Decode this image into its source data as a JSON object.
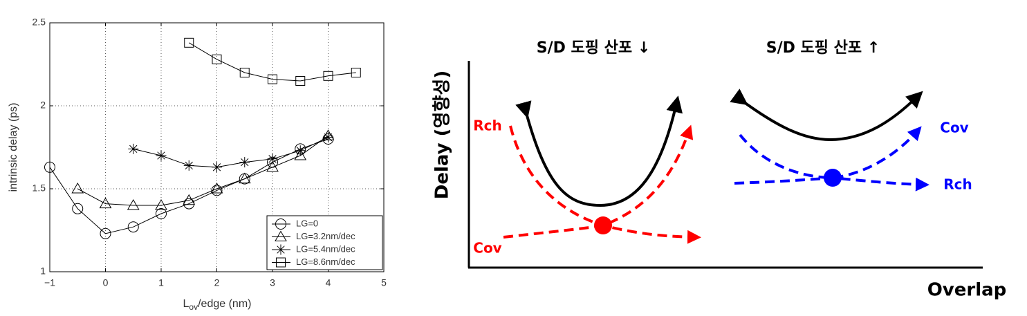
{
  "chart_data": {
    "type": "line",
    "xlabel": [
      "L",
      "ov",
      "/edge (nm)"
    ],
    "ylabel": "intrinsic delay (ps)",
    "xlim": [
      -1,
      5
    ],
    "ylim": [
      1,
      2.5
    ],
    "xticks": [
      {
        "value": -1,
        "label": "−1"
      },
      0,
      1,
      2,
      3,
      4,
      5
    ],
    "yticks": [
      1,
      1.5,
      2,
      2.5
    ],
    "grid": true,
    "legend": "lower right",
    "series": [
      {
        "name": "LG=0",
        "color": "#000000",
        "marker": "o",
        "x": [
          -1,
          -0.5,
          0,
          0.5,
          1,
          1.5,
          2,
          2.5,
          3,
          3.5,
          4
        ],
        "values": [
          1.63,
          1.38,
          1.23,
          1.27,
          1.35,
          1.41,
          1.49,
          1.56,
          1.66,
          1.74,
          1.8
        ]
      },
      {
        "name": "LG=3.2nm/dec",
        "color": "#000000",
        "marker": "^",
        "x": [
          -0.5,
          0,
          0.5,
          1,
          1.5,
          2,
          2.5,
          3,
          3.5,
          4
        ],
        "values": [
          1.5,
          1.41,
          1.4,
          1.4,
          1.43,
          1.5,
          1.56,
          1.63,
          1.7,
          1.82
        ]
      },
      {
        "name": "LG=5.4nm/dec",
        "color": "#000000",
        "marker": "*",
        "x": [
          0.5,
          1,
          1.5,
          2,
          2.5,
          3,
          3.5,
          4
        ],
        "values": [
          1.74,
          1.7,
          1.64,
          1.63,
          1.66,
          1.68,
          1.73,
          1.81
        ]
      },
      {
        "name": "LG=8.6nm/dec",
        "color": "#000000",
        "marker": "s",
        "x": [
          1.5,
          2,
          2.5,
          3,
          3.5,
          4,
          4.5
        ],
        "values": [
          2.38,
          2.28,
          2.2,
          2.16,
          2.15,
          2.18,
          2.2
        ]
      }
    ]
  },
  "diagram": {
    "left_title": "S/D 도핑 산포 ↓",
    "right_title": "S/D 도핑 산포 ↑",
    "ylabel": "Delay (영향성)",
    "xlabel": "Overlap",
    "left_rch": "Rch",
    "left_cov": "Cov",
    "right_cov": "Cov",
    "right_rch": "Rch"
  }
}
